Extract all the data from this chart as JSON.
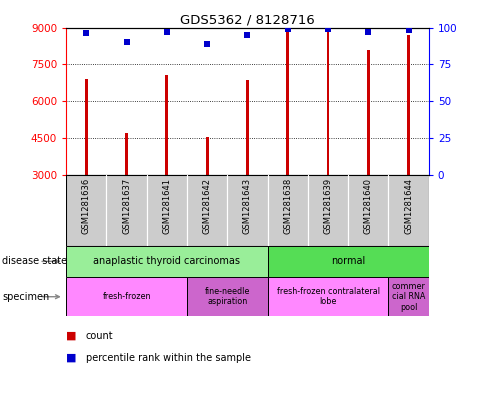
{
  "title": "GDS5362 / 8128716",
  "samples": [
    "GSM1281636",
    "GSM1281637",
    "GSM1281641",
    "GSM1281642",
    "GSM1281643",
    "GSM1281638",
    "GSM1281639",
    "GSM1281640",
    "GSM1281644"
  ],
  "counts": [
    6900,
    4700,
    7050,
    4550,
    6850,
    8920,
    8920,
    8100,
    8700
  ],
  "percentiles": [
    96,
    90,
    97,
    89,
    95,
    99,
    99,
    97,
    98
  ],
  "ymin": 3000,
  "ymax": 9000,
  "yticks_left": [
    3000,
    4500,
    6000,
    7500,
    9000
  ],
  "yticks_right": [
    0,
    25,
    50,
    75,
    100
  ],
  "bar_color": "#cc0000",
  "dot_color": "#0000cc",
  "disease_state": [
    {
      "label": "anaplastic thyroid carcinomas",
      "start": 0,
      "end": 5,
      "color": "#99ee99"
    },
    {
      "label": "normal",
      "start": 5,
      "end": 9,
      "color": "#55dd55"
    }
  ],
  "specimen": [
    {
      "start": 0,
      "end": 3,
      "label": "fresh-frozen",
      "color": "#ff88ff"
    },
    {
      "start": 3,
      "end": 5,
      "label": "fine-needle\naspiration",
      "color": "#cc66cc"
    },
    {
      "start": 5,
      "end": 8,
      "label": "fresh-frozen contralateral\nlobe",
      "color": "#ff88ff"
    },
    {
      "start": 8,
      "end": 9,
      "label": "commer\ncial RNA\npool",
      "color": "#cc66cc"
    }
  ]
}
